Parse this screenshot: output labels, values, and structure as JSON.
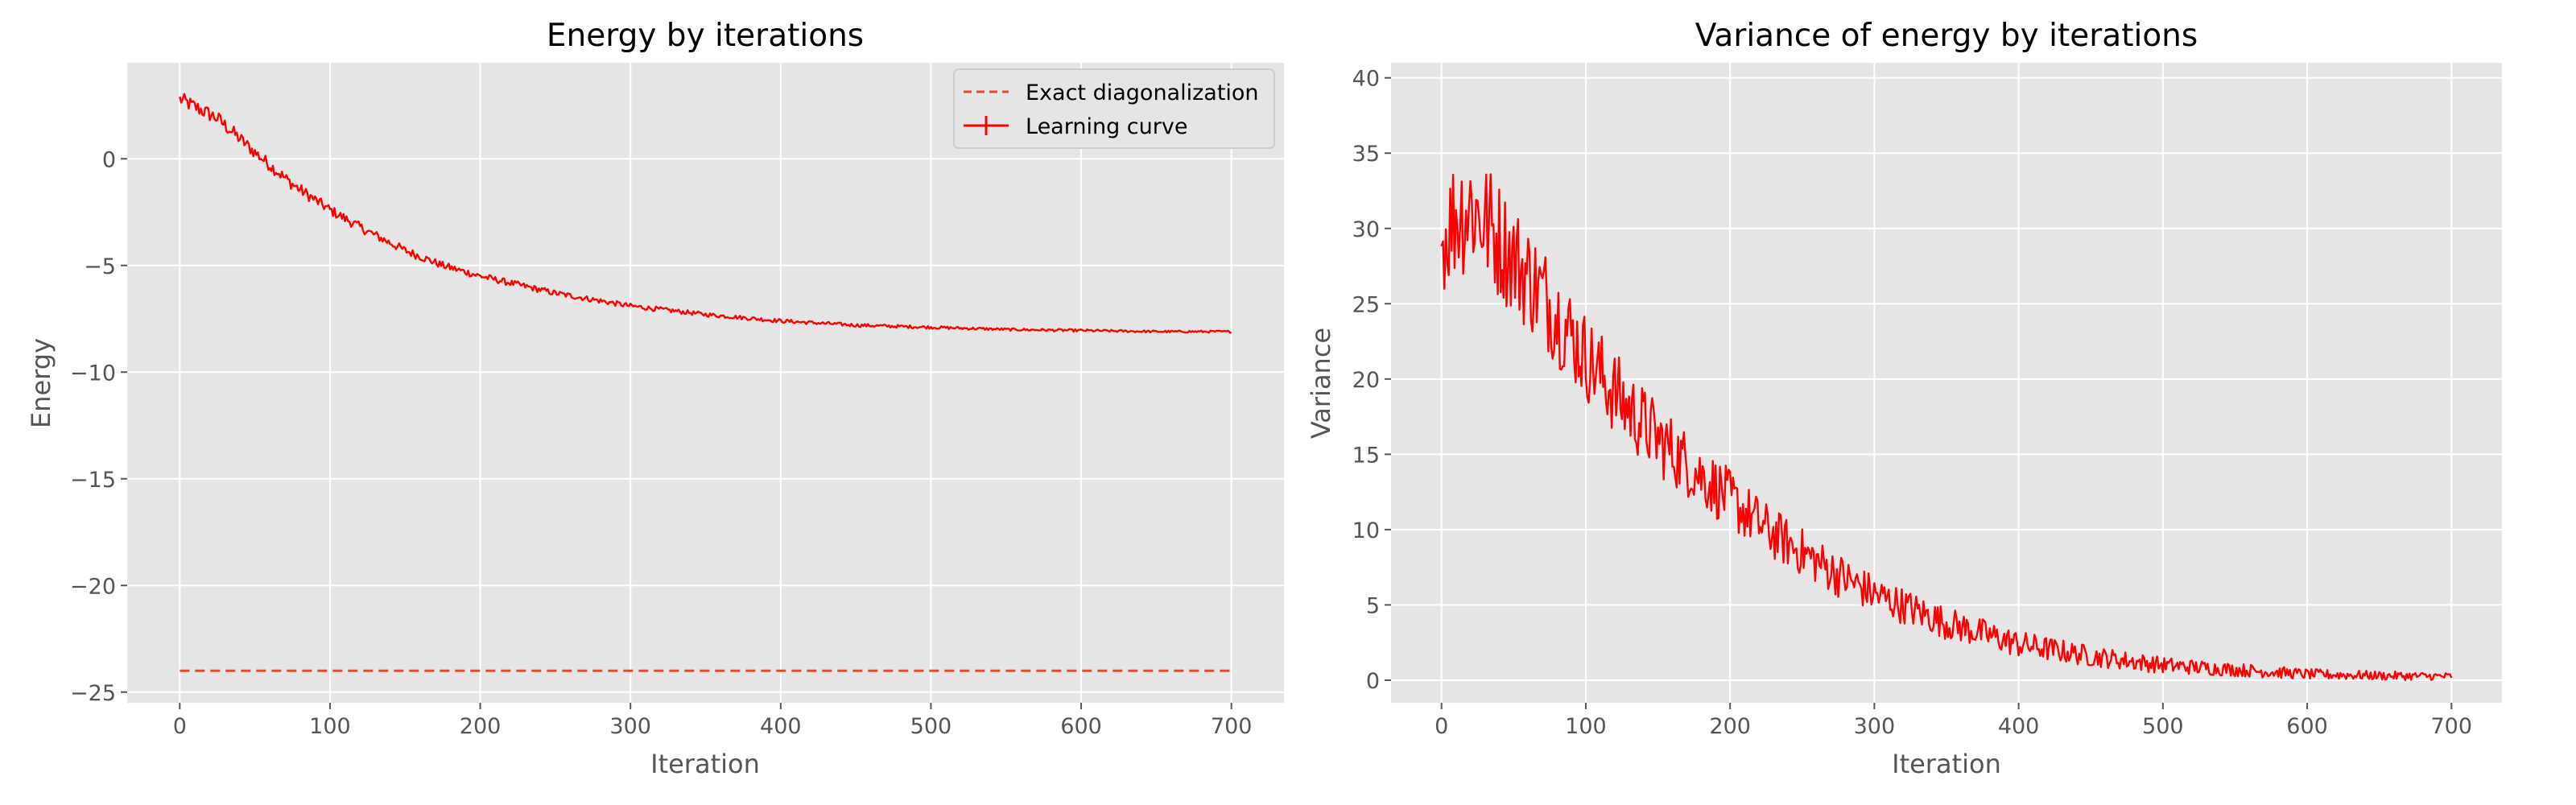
{
  "chart_data": [
    {
      "type": "line",
      "title": "Energy by iterations",
      "xlabel": "Iteration",
      "ylabel": "Energy",
      "xlim": [
        -35,
        735
      ],
      "ylim": [
        -25.5,
        4.5
      ],
      "xticks": [
        0,
        100,
        200,
        300,
        400,
        500,
        600,
        700
      ],
      "yticks": [
        0,
        -5,
        -10,
        -15,
        -20,
        -25
      ],
      "grid": true,
      "legend": "top-right",
      "colors": {
        "background": "#e5e5e5",
        "grid": "#ffffff",
        "curve": "#ff0000",
        "exact": "#e24a33"
      },
      "series": [
        {
          "name": "Exact diagonalization",
          "style": "dashed",
          "x": [
            0,
            700
          ],
          "y": [
            -24.0,
            -24.0
          ]
        },
        {
          "name": "Learning curve",
          "style": "solid-errorbar",
          "x": [
            0,
            25,
            50,
            75,
            100,
            125,
            150,
            175,
            200,
            250,
            300,
            350,
            400,
            450,
            500,
            550,
            600,
            650,
            700
          ],
          "y": [
            2.8,
            1.9,
            0.3,
            -1.2,
            -2.4,
            -3.4,
            -4.3,
            -5.0,
            -5.5,
            -6.3,
            -6.9,
            -7.3,
            -7.6,
            -7.8,
            -7.9,
            -8.0,
            -8.05,
            -8.1,
            -8.1
          ],
          "noise": [
            0.35,
            0.35,
            0.3,
            0.28,
            0.25,
            0.22,
            0.2,
            0.18,
            0.16,
            0.14,
            0.12,
            0.1,
            0.09,
            0.08,
            0.07,
            0.06,
            0.06,
            0.05,
            0.05
          ]
        }
      ]
    },
    {
      "type": "line",
      "title": "Variance of energy by iterations",
      "xlabel": "Iteration",
      "ylabel": "Variance",
      "xlim": [
        -35,
        735
      ],
      "ylim": [
        -1.5,
        41
      ],
      "xticks": [
        0,
        100,
        200,
        300,
        400,
        500,
        600,
        700
      ],
      "yticks": [
        0,
        5,
        10,
        15,
        20,
        25,
        30,
        35,
        40
      ],
      "grid": true,
      "colors": {
        "background": "#e5e5e5",
        "grid": "#ffffff",
        "curve": "#ff0000"
      },
      "series": [
        {
          "x": [
            0,
            10,
            20,
            30,
            50,
            75,
            100,
            125,
            150,
            175,
            200,
            225,
            250,
            275,
            300,
            350,
            400,
            450,
            500,
            550,
            600,
            650,
            700
          ],
          "y": [
            29.0,
            31.0,
            31.5,
            30.5,
            28.0,
            25.0,
            21.5,
            18.5,
            16.0,
            14.0,
            12.0,
            10.0,
            8.5,
            7.0,
            5.7,
            3.8,
            2.4,
            1.6,
            1.0,
            0.7,
            0.4,
            0.3,
            0.25
          ],
          "noise": [
            3.5,
            4.5,
            4.5,
            4.2,
            3.8,
            3.5,
            3.0,
            2.8,
            2.5,
            2.2,
            2.0,
            1.8,
            1.6,
            1.5,
            1.3,
            1.1,
            0.9,
            0.7,
            0.55,
            0.45,
            0.35,
            0.3,
            0.25
          ]
        }
      ]
    }
  ]
}
